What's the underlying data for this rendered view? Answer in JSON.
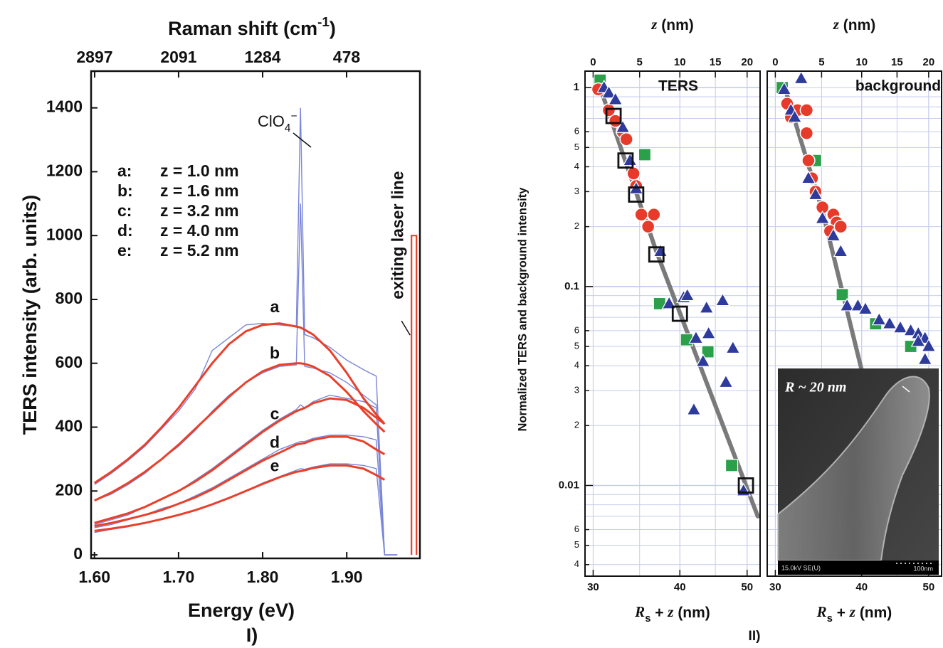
{
  "chart_data": [
    {
      "type": "line",
      "xlabel": "Energy (eV)",
      "ylabel": "TERS intensity  (arb. units)",
      "x2label": [
        "Raman shift  (cm",
        "-1",
        ")"
      ],
      "x": [
        1.6,
        1.62,
        1.64,
        1.66,
        1.68,
        1.7,
        1.72,
        1.74,
        1.76,
        1.78,
        1.8,
        1.82,
        1.84,
        1.845,
        1.85,
        1.86,
        1.88,
        1.9,
        1.92,
        1.935,
        1.945,
        1.96
      ],
      "xlim": [
        1.596,
        1.987
      ],
      "xticks": [
        {
          "value": 1.6,
          "label": "1.60"
        },
        {
          "value": 1.7,
          "label": "1.70"
        },
        {
          "value": 1.8,
          "label": "1.80"
        },
        {
          "value": 1.9,
          "label": "1.90"
        }
      ],
      "ylim": [
        -11,
        1515
      ],
      "yticks": [
        0,
        200,
        400,
        600,
        800,
        1000,
        1200,
        1400
      ],
      "x2lim": [
        2931,
        -226
      ],
      "x2ticks": [
        2897,
        2091,
        1284,
        478
      ],
      "fit_color": "#e8402a",
      "series": [
        {
          "name": "a",
          "color": "#7a86d8",
          "values": [
            220,
            255,
            295,
            340,
            395,
            450,
            520,
            640,
            680,
            720,
            725,
            720,
            715,
            1400,
            690,
            680,
            650,
            610,
            580,
            560,
            0,
            0
          ],
          "fit": [
            225,
            260,
            300,
            345,
            400,
            460,
            530,
            600,
            660,
            700,
            720,
            725,
            715,
            712,
            705,
            690,
            640,
            570,
            490,
            440,
            410,
            null
          ]
        },
        {
          "name": "b",
          "color": "#7a86d8",
          "values": [
            170,
            190,
            220,
            255,
            300,
            340,
            390,
            450,
            500,
            540,
            570,
            590,
            595,
            1100,
            590,
            585,
            570,
            540,
            500,
            470,
            0,
            0
          ],
          "fit": [
            170,
            195,
            225,
            260,
            300,
            345,
            395,
            445,
            495,
            540,
            575,
            595,
            600,
            600,
            598,
            590,
            560,
            510,
            450,
            410,
            385,
            null
          ]
        },
        {
          "name": "c",
          "color": "#7a86d8",
          "values": [
            95,
            110,
            125,
            150,
            175,
            200,
            235,
            270,
            310,
            350,
            390,
            425,
            455,
            470,
            460,
            480,
            500,
            490,
            480,
            460,
            0,
            0
          ],
          "fit": [
            100,
            115,
            130,
            150,
            175,
            200,
            230,
            265,
            305,
            345,
            385,
            420,
            450,
            455,
            460,
            475,
            490,
            485,
            460,
            430,
            410,
            null
          ]
        },
        {
          "name": "d",
          "color": "#7a86d8",
          "values": [
            85,
            95,
            110,
            125,
            145,
            160,
            185,
            210,
            240,
            270,
            300,
            330,
            350,
            355,
            355,
            365,
            375,
            375,
            370,
            360,
            0,
            0
          ],
          "fit": [
            90,
            100,
            112,
            125,
            140,
            160,
            180,
            205,
            235,
            265,
            295,
            320,
            345,
            348,
            350,
            360,
            370,
            370,
            355,
            330,
            315,
            null
          ]
        },
        {
          "name": "e",
          "color": "#7a86d8",
          "values": [
            70,
            80,
            88,
            100,
            110,
            125,
            140,
            160,
            180,
            200,
            225,
            245,
            265,
            270,
            268,
            275,
            285,
            285,
            280,
            270,
            0,
            0
          ],
          "fit": [
            75,
            82,
            90,
            100,
            112,
            125,
            140,
            158,
            178,
            200,
            222,
            243,
            260,
            262,
            265,
            272,
            280,
            280,
            270,
            250,
            235,
            null
          ]
        }
      ],
      "legend": [
        [
          "a:",
          "z = 1.0 nm"
        ],
        [
          "b:",
          "z = 1.6 nm"
        ],
        [
          "c:",
          "z = 3.2 nm"
        ],
        [
          "d:",
          "z = 4.0 nm"
        ],
        [
          "e:",
          "z = 5.2 nm"
        ]
      ],
      "annotation": [
        "ClO",
        "4",
        "−"
      ],
      "laser_line": {
        "x": 1.977,
        "y": [
          0,
          1000
        ],
        "color": "#e8402a",
        "label": "exiting laser line"
      },
      "panel_label": "I)"
    },
    {
      "type": "scatter",
      "xlog": true,
      "ylog": true,
      "grid": true,
      "xlabel": [
        "R",
        "s",
        " + ",
        "z",
        "  (nm)"
      ],
      "x2label": [
        "z",
        "  (nm)"
      ],
      "ylabel": "Normalized TERS and background intensity",
      "annotation": "TERS",
      "xlim": [
        29.2,
        52.2
      ],
      "xticks": [
        30,
        40,
        50
      ],
      "x2lim": [
        -0.8,
        22.2
      ],
      "x2ticks": [
        0,
        5,
        10,
        15,
        20
      ],
      "ylim": [
        0.0035,
        1.21
      ],
      "yticks": [
        {
          "value": 0.004,
          "label": "4"
        },
        {
          "value": 0.005,
          "label": "5"
        },
        {
          "value": 0.006,
          "label": "6"
        },
        0.01,
        {
          "value": 0.02,
          "label": "2"
        },
        {
          "value": 0.03,
          "label": "3"
        },
        {
          "value": 0.04,
          "label": "4"
        },
        {
          "value": 0.05,
          "label": "5"
        },
        {
          "value": 0.06,
          "label": "6"
        },
        0.1,
        {
          "value": 0.2,
          "label": "2"
        },
        {
          "value": 0.3,
          "label": "3"
        },
        {
          "value": 0.4,
          "label": "4"
        },
        {
          "value": 0.5,
          "label": "5"
        },
        {
          "value": 0.6,
          "label": "6"
        },
        1
      ],
      "ygrid": [
        0.007,
        0.008,
        0.009,
        0.07,
        0.08,
        0.09,
        0.7,
        0.8,
        0.9
      ],
      "fit_line": {
        "color": "#7a7a7a",
        "x": [
          30.5,
          37,
          51.8
        ],
        "values": [
          1.07,
          0.15,
          0.007
        ]
      },
      "series": [
        {
          "marker": "square",
          "color": "#2aa04a",
          "x": [
            30.7,
            35.6,
            37.4,
            40.9,
            43.9,
            47.5
          ],
          "values": [
            1.09,
            0.46,
            0.082,
            0.054,
            0.047,
            0.0126
          ]
        },
        {
          "marker": "circle",
          "color": "#e63a2a",
          "x": [
            30.5,
            31.6,
            32.3,
            33.1,
            33.5,
            34.3,
            34.6,
            35.2,
            36.0,
            36.7
          ],
          "values": [
            0.98,
            0.77,
            0.68,
            0.6,
            0.55,
            0.37,
            0.32,
            0.23,
            0.2,
            0.23
          ]
        },
        {
          "marker": "triangle",
          "color": "#2e3a9c",
          "x": [
            31.1,
            31.6,
            32.3,
            33.1,
            33.9,
            34.6,
            37.5,
            38.6,
            40.5,
            41.0,
            43.7,
            46.1,
            42.2,
            43.2,
            44.0,
            46.6,
            41.9,
            47.7,
            49.4
          ],
          "values": [
            1.0,
            0.94,
            0.87,
            0.63,
            0.43,
            0.31,
            0.15,
            0.082,
            0.088,
            0.09,
            0.078,
            0.085,
            0.055,
            0.042,
            0.058,
            0.033,
            0.024,
            0.049,
            0.0094
          ]
        },
        {
          "marker": "open-square",
          "color": "#111111",
          "x": [
            32.1,
            33.4,
            34.6,
            37.0,
            40.0,
            49.8
          ],
          "values": [
            0.72,
            0.43,
            0.29,
            0.145,
            0.073,
            0.01
          ]
        }
      ],
      "panel_label": "II)"
    },
    {
      "type": "scatter",
      "xlog": true,
      "ylog": true,
      "grid": true,
      "xlabel": [
        "R",
        "s",
        " + ",
        "z",
        "  (nm)"
      ],
      "x2label": [
        "z",
        "  (nm)"
      ],
      "annotation": "background",
      "xlim": [
        29.2,
        52.2
      ],
      "xticks": [
        30,
        40,
        50
      ],
      "x2lim": [
        -0.8,
        22.2
      ],
      "x2ticks": [
        0,
        5,
        10,
        15,
        20
      ],
      "ylim": [
        0.0035,
        1.21
      ],
      "ygrid": [
        0.004,
        0.005,
        0.006,
        0.007,
        0.008,
        0.009,
        0.01,
        0.02,
        0.03,
        0.04,
        0.05,
        0.06,
        0.07,
        0.08,
        0.09,
        0.1,
        0.2,
        0.3,
        0.4,
        0.5,
        0.6,
        0.7,
        0.8,
        0.9,
        1
      ],
      "fit_line": {
        "color": "#7a7a7a",
        "x": [
          30.9,
          35.1,
          40.0
        ],
        "values": [
          1.02,
          0.24,
          0.038
        ]
      },
      "series": [
        {
          "marker": "square",
          "color": "#2aa04a",
          "x": [
            30.7,
            34.3,
            37.5,
            41.9,
            47.1
          ],
          "values": [
            1.0,
            0.43,
            0.091,
            0.065,
            0.05
          ]
        },
        {
          "marker": "circle",
          "color": "#e63a2a",
          "x": [
            31.2,
            31.6,
            32.3,
            33.3,
            33.3,
            33.5,
            33.9,
            34.3,
            35.1,
            36.4,
            36.8,
            36.0,
            37.3
          ],
          "values": [
            0.83,
            0.71,
            0.77,
            0.77,
            0.59,
            0.43,
            0.35,
            0.3,
            0.25,
            0.23,
            0.21,
            0.19,
            0.2
          ]
        },
        {
          "marker": "triangle",
          "color": "#2e3a9c",
          "x": [
            30.9,
            31.6,
            32.0,
            32.7,
            33.5,
            34.3,
            35.1,
            36.4,
            37.3,
            38.1,
            39.5,
            40.5,
            42.4,
            43.9,
            45.5,
            47.1,
            48.3,
            49.4,
            48.3,
            50.0,
            49.4
          ],
          "values": [
            0.98,
            0.77,
            0.71,
            1.11,
            0.35,
            0.29,
            0.22,
            0.18,
            0.15,
            0.08,
            0.08,
            0.077,
            0.068,
            0.065,
            0.062,
            0.06,
            0.058,
            0.055,
            0.053,
            0.05,
            0.043
          ]
        }
      ],
      "inset": {
        "title": "R ~ 20 nm",
        "footer_left": "15.0kV SE(U)",
        "footer_right": "100nm"
      }
    }
  ]
}
